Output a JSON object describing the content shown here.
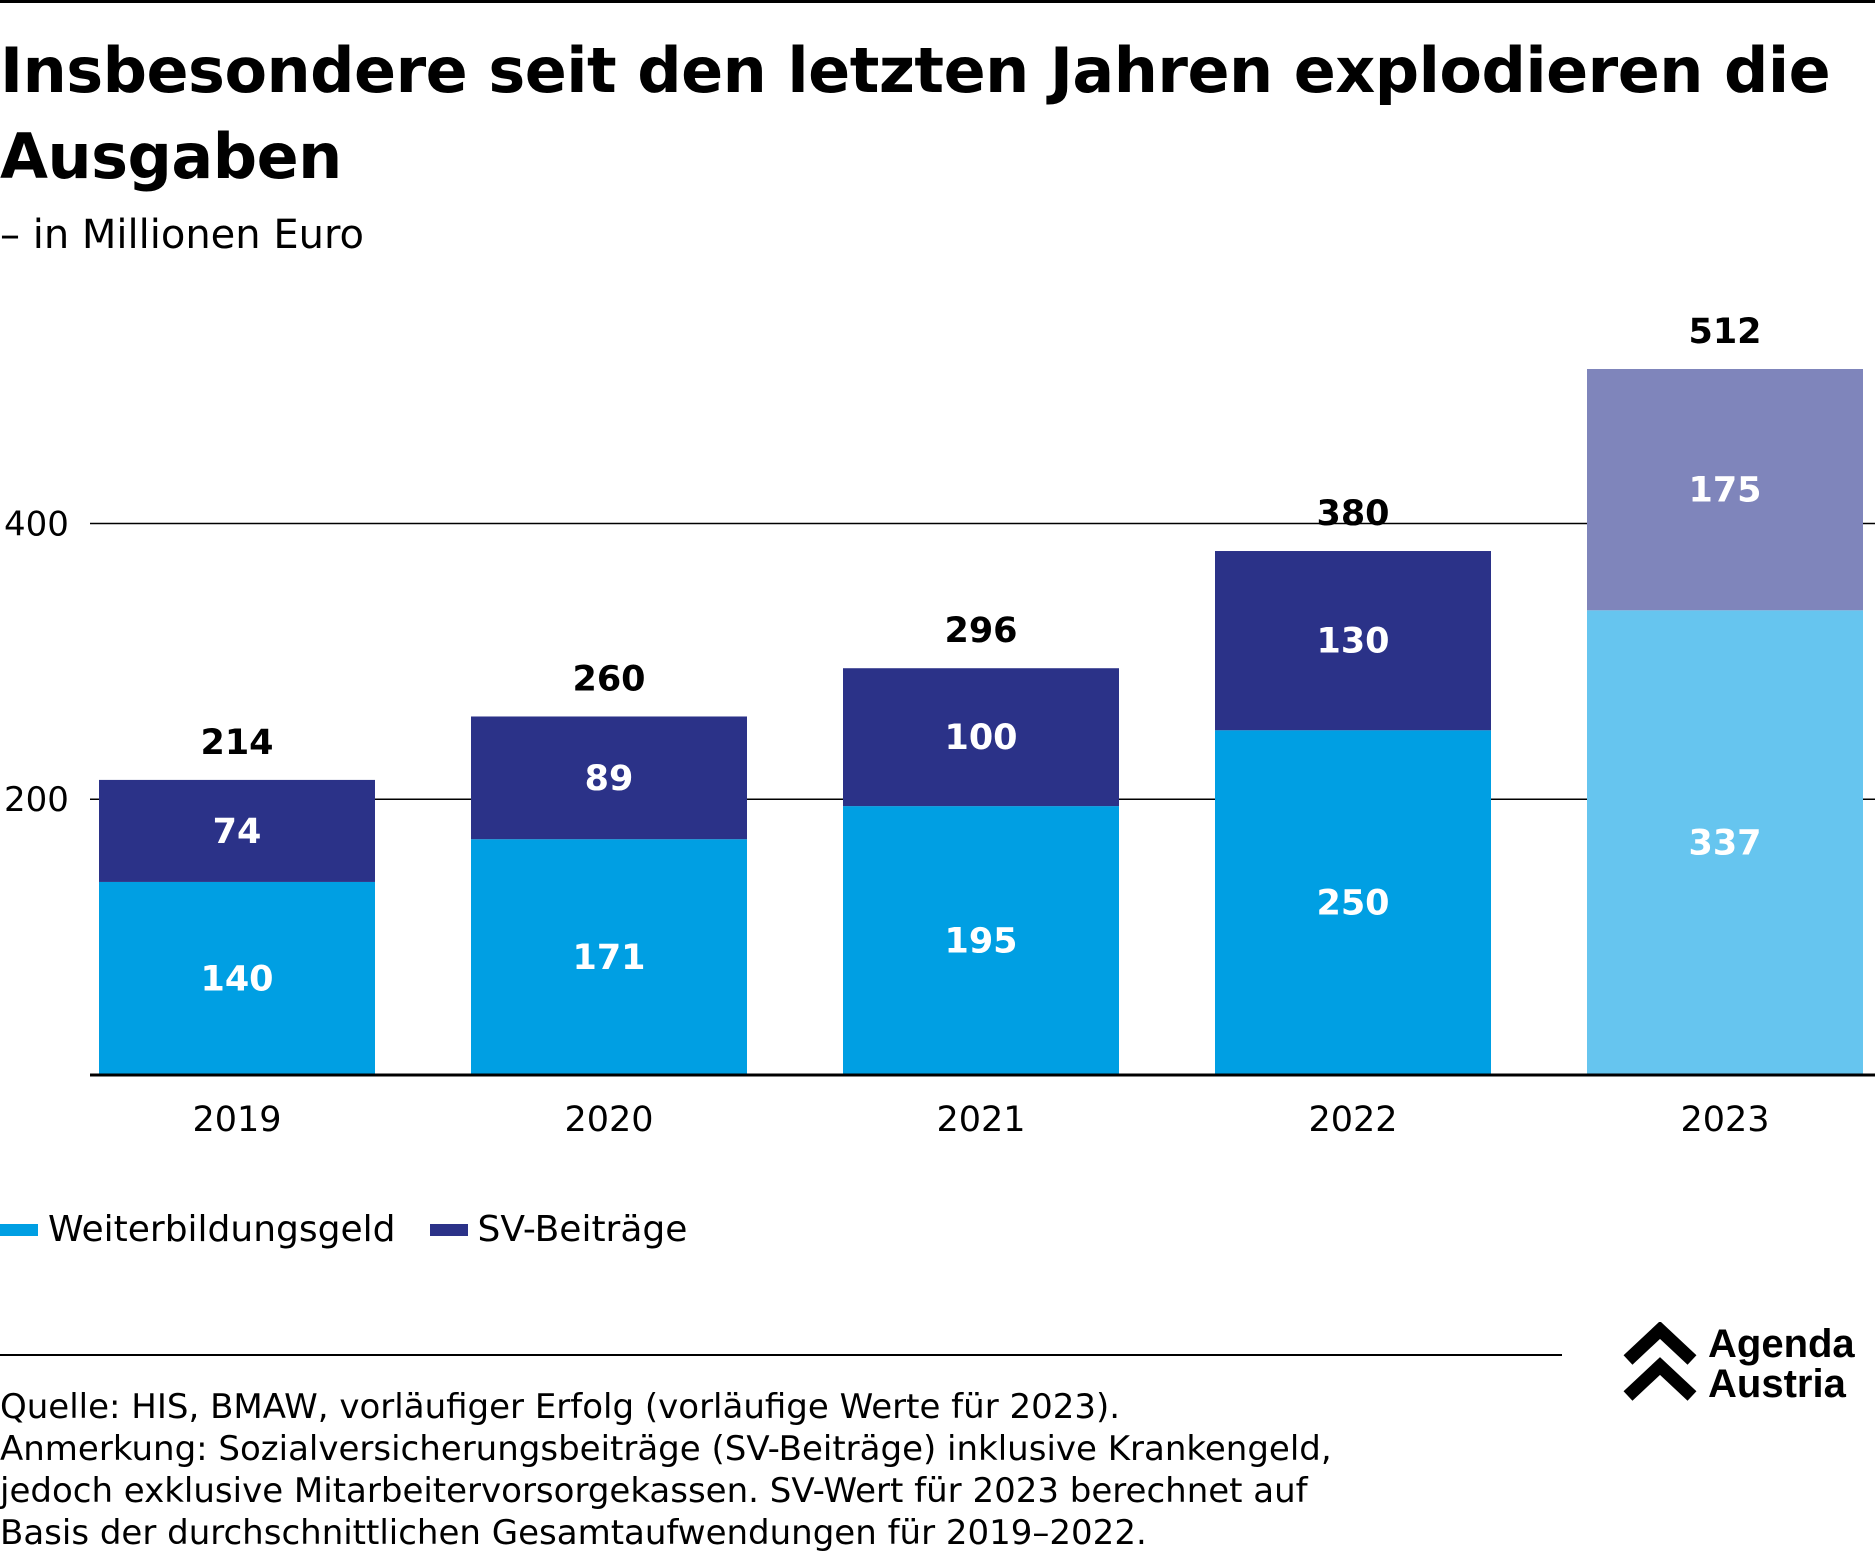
{
  "chart_data": {
    "type": "bar",
    "stacked": true,
    "title": "Insbesondere seit den letzten Jahren explodieren die Ausgaben",
    "subtitle": "– in Millionen Euro",
    "categories": [
      "2019",
      "2020",
      "2021",
      "2022",
      "2023"
    ],
    "series": [
      {
        "name": "Weiterbildungsgeld",
        "values": [
          140,
          171,
          195,
          250,
          337
        ],
        "color": "#009fe3",
        "highlight_color": "#66c5ef"
      },
      {
        "name": "SV-Beiträge",
        "values": [
          74,
          89,
          100,
          130,
          175
        ],
        "color": "#2b3288",
        "highlight_color": "#7f85bb"
      }
    ],
    "totals": [
      "214",
      "260",
      "296",
      "380",
      "512"
    ],
    "highlight_category": "2023",
    "ylim": [
      0,
      512
    ],
    "yticks": [
      200,
      400
    ],
    "ytick_labels": [
      "200",
      "400"
    ],
    "grid": true,
    "legend_position": "bottom-left"
  },
  "legend": [
    {
      "label": "Weiterbildungsgeld",
      "color": "#009fe3"
    },
    {
      "label": "SV-Beiträge",
      "color": "#2b3288"
    }
  ],
  "notes": {
    "source": "Quelle: HIS, BMAW, vorläufiger Erfolg (vorläufige Werte für 2023).",
    "remark_1": "Anmerkung: Sozialversicherungsbeiträge (SV-Beiträge) inklusive Krankengeld,",
    "remark_2": "jedoch exklusive Mitarbeitervorsorgekassen. SV-Wert für 2023 berechnet auf",
    "remark_3": "Basis der durchschnittlichen Gesamtaufwendungen für 2019–2022."
  },
  "logo": {
    "line1": "Agenda",
    "line2": "Austria",
    "icon": "double-chevron-up-icon"
  }
}
